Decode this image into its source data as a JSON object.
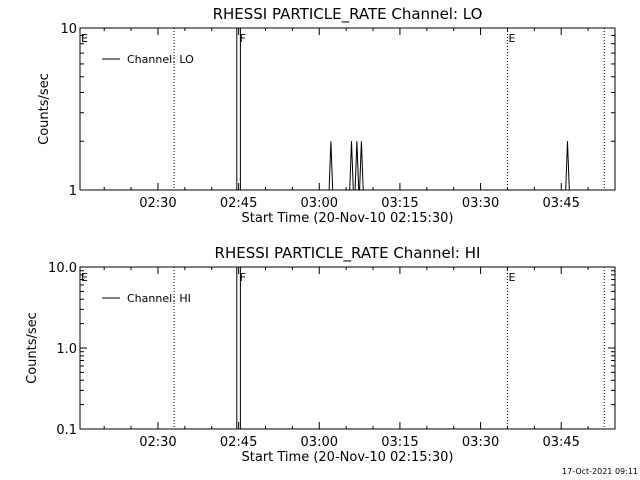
{
  "chart_data": [
    {
      "type": "line",
      "title": "RHESSI PARTICLE_RATE Channel: LO",
      "xlabel": "Start Time (20-Nov-10 02:15:30)",
      "ylabel": "Counts/sec",
      "y_scale": "log",
      "ylim": [
        1,
        10
      ],
      "xlim": [
        "02:15:30",
        "03:55:00"
      ],
      "x_ticks": [
        "02:30",
        "02:45",
        "03:00",
        "03:15",
        "03:30",
        "03:45"
      ],
      "y_ticks": [
        {
          "value": 1,
          "label": "1"
        },
        {
          "value": 10,
          "label": "10"
        }
      ],
      "legend": {
        "position": "top-left",
        "entries": [
          "Channel: LO"
        ]
      },
      "series": [
        {
          "name": "Channel: LO",
          "points": [
            [
              "02:44:40",
              1
            ],
            [
              "02:44:40",
              10
            ],
            [
              "02:45:20",
              10
            ],
            [
              "02:45:20",
              1
            ],
            [
              "03:01:50",
              1
            ],
            [
              "03:02:10",
              2
            ],
            [
              "03:02:30",
              1
            ],
            [
              "03:05:40",
              1
            ],
            [
              "03:06:00",
              2
            ],
            [
              "03:06:20",
              1
            ],
            [
              "03:06:40",
              1
            ],
            [
              "03:07:00",
              2
            ],
            [
              "03:07:20",
              1
            ],
            [
              "03:07:30",
              1
            ],
            [
              "03:07:50",
              2
            ],
            [
              "03:08:10",
              1
            ],
            [
              "03:45:50",
              1
            ],
            [
              "03:46:10",
              2
            ],
            [
              "03:46:30",
              1
            ]
          ]
        }
      ],
      "markers": [
        {
          "time": "02:15:30",
          "label": "E",
          "style": "none"
        },
        {
          "time": "02:33:00",
          "label": "",
          "style": "dotted"
        },
        {
          "time": "02:45:00",
          "label": "F",
          "style": "none"
        },
        {
          "time": "03:35:00",
          "label": "E",
          "style": "dotted"
        },
        {
          "time": "03:53:00",
          "label": "",
          "style": "dotted"
        }
      ]
    },
    {
      "type": "line",
      "title": "RHESSI PARTICLE_RATE Channel: HI",
      "xlabel": "Start Time (20-Nov-10 02:15:30)",
      "ylabel": "Counts/sec",
      "y_scale": "log",
      "ylim": [
        0.1,
        10
      ],
      "xlim": [
        "02:15:30",
        "03:55:00"
      ],
      "x_ticks": [
        "02:30",
        "02:45",
        "03:00",
        "03:15",
        "03:30",
        "03:45"
      ],
      "y_ticks": [
        {
          "value": 0.1,
          "label": "0.1"
        },
        {
          "value": 1,
          "label": "1.0"
        },
        {
          "value": 10,
          "label": "10.0"
        }
      ],
      "legend": {
        "position": "top-left",
        "entries": [
          "Channel: HI"
        ]
      },
      "series": [
        {
          "name": "Channel: HI",
          "points": [
            [
              "02:44:40",
              0.1
            ],
            [
              "02:44:40",
              10
            ],
            [
              "02:45:20",
              10
            ],
            [
              "02:45:20",
              0.1
            ]
          ]
        }
      ],
      "markers": [
        {
          "time": "02:15:30",
          "label": "E",
          "style": "none"
        },
        {
          "time": "02:33:00",
          "label": "",
          "style": "dotted"
        },
        {
          "time": "02:45:00",
          "label": "F",
          "style": "none"
        },
        {
          "time": "03:35:00",
          "label": "E",
          "style": "dotted"
        },
        {
          "time": "03:53:00",
          "label": "",
          "style": "dotted"
        }
      ]
    }
  ],
  "footer": {
    "timestamp": "17-Oct-2021 09:11"
  }
}
